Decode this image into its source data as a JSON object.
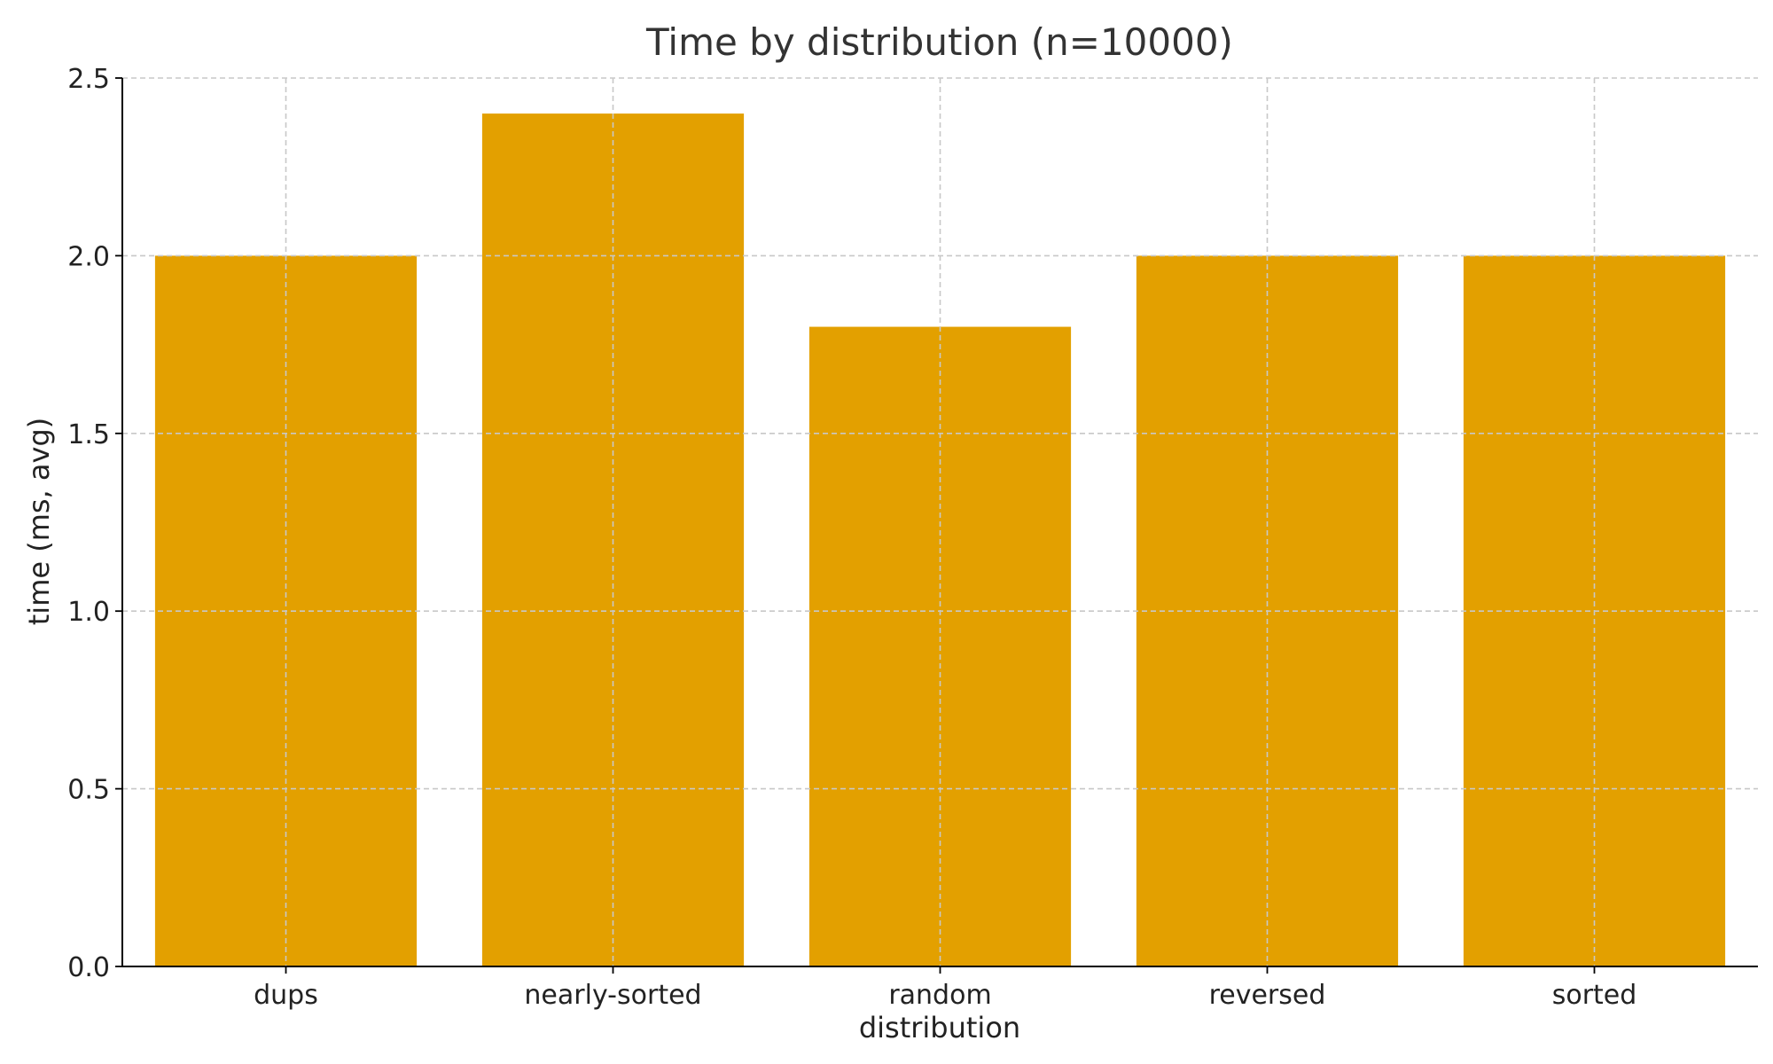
{
  "chart_data": {
    "type": "bar",
    "title": "Time by distribution (n=10000)",
    "xlabel": "distribution",
    "ylabel": "time (ms, avg)",
    "categories": [
      "dups",
      "nearly-sorted",
      "random",
      "reversed",
      "sorted"
    ],
    "values": [
      2.0,
      2.4,
      1.8,
      2.0,
      2.0
    ],
    "ylim": [
      0,
      2.5
    ],
    "yticks": [
      0.0,
      0.5,
      1.0,
      1.5,
      2.0,
      2.5
    ],
    "ytick_labels": [
      "0.0",
      "0.5",
      "1.0",
      "1.5",
      "2.0",
      "2.5"
    ],
    "grid": true,
    "bar_color": "#E3A000"
  }
}
